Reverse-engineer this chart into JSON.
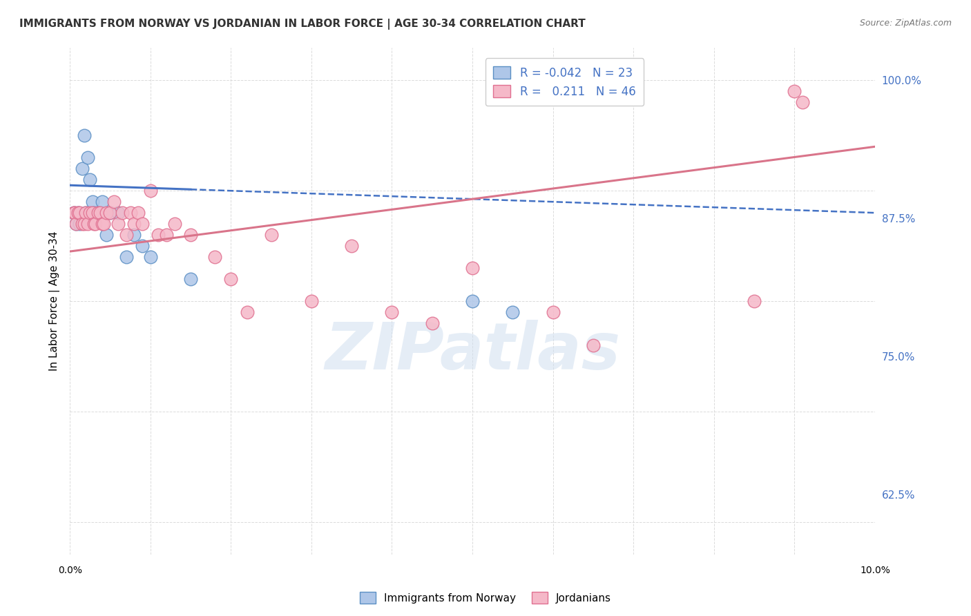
{
  "title": "IMMIGRANTS FROM NORWAY VS JORDANIAN IN LABOR FORCE | AGE 30-34 CORRELATION CHART",
  "source": "Source: ZipAtlas.com",
  "ylabel": "In Labor Force | Age 30-34",
  "xmin": 0.0,
  "xmax": 10.0,
  "ymin": 57.0,
  "ymax": 103.0,
  "yticks": [
    62.5,
    75.0,
    87.5,
    100.0
  ],
  "legend_R_norway": "-0.042",
  "legend_N_norway": "23",
  "legend_R_jordan": "0.211",
  "legend_N_jordan": "46",
  "norway_color": "#aec6e8",
  "jordan_color": "#f5b8c8",
  "norway_edge": "#5b8fc4",
  "jordan_edge": "#e07090",
  "norway_line_color": "#4472c4",
  "jordan_line_color": "#d9748a",
  "norway_x": [
    0.05,
    0.08,
    0.1,
    0.12,
    0.15,
    0.18,
    0.2,
    0.22,
    0.25,
    0.28,
    0.3,
    0.35,
    0.4,
    0.45,
    0.5,
    0.6,
    0.7,
    0.8,
    0.9,
    1.0,
    1.5,
    5.0,
    5.5
  ],
  "norway_y": [
    88,
    87,
    88,
    87,
    92,
    95,
    88,
    93,
    91,
    89,
    88,
    88,
    89,
    86,
    88,
    88,
    84,
    86,
    85,
    84,
    82,
    80,
    79
  ],
  "jordan_x": [
    0.05,
    0.06,
    0.08,
    0.1,
    0.12,
    0.15,
    0.18,
    0.2,
    0.22,
    0.25,
    0.28,
    0.3,
    0.32,
    0.35,
    0.38,
    0.4,
    0.42,
    0.45,
    0.5,
    0.55,
    0.6,
    0.65,
    0.7,
    0.75,
    0.8,
    0.85,
    0.9,
    1.0,
    1.1,
    1.2,
    1.3,
    1.5,
    1.8,
    2.0,
    2.2,
    2.5,
    3.0,
    3.5,
    4.0,
    4.5,
    5.0,
    6.0,
    6.5,
    8.5,
    9.0,
    9.1
  ],
  "jordan_y": [
    88,
    88,
    87,
    88,
    88,
    87,
    87,
    88,
    87,
    88,
    88,
    87,
    87,
    88,
    88,
    87,
    87,
    88,
    88,
    89,
    87,
    88,
    86,
    88,
    87,
    88,
    87,
    90,
    86,
    86,
    87,
    86,
    84,
    82,
    79,
    86,
    80,
    85,
    79,
    78,
    83,
    79,
    76,
    80,
    99,
    98
  ],
  "norway_line_x0": 0.0,
  "norway_line_x1": 10.0,
  "norway_line_y0": 90.5,
  "norway_line_y1": 88.0,
  "norway_solid_x1": 1.5,
  "jordan_line_y0": 84.5,
  "jordan_line_y1": 94.0,
  "background_color": "#ffffff",
  "grid_color": "#d8d8d8",
  "watermark": "ZIPatlas",
  "watermark_color": "#d0dff0",
  "title_fontsize": 11,
  "source_fontsize": 9
}
